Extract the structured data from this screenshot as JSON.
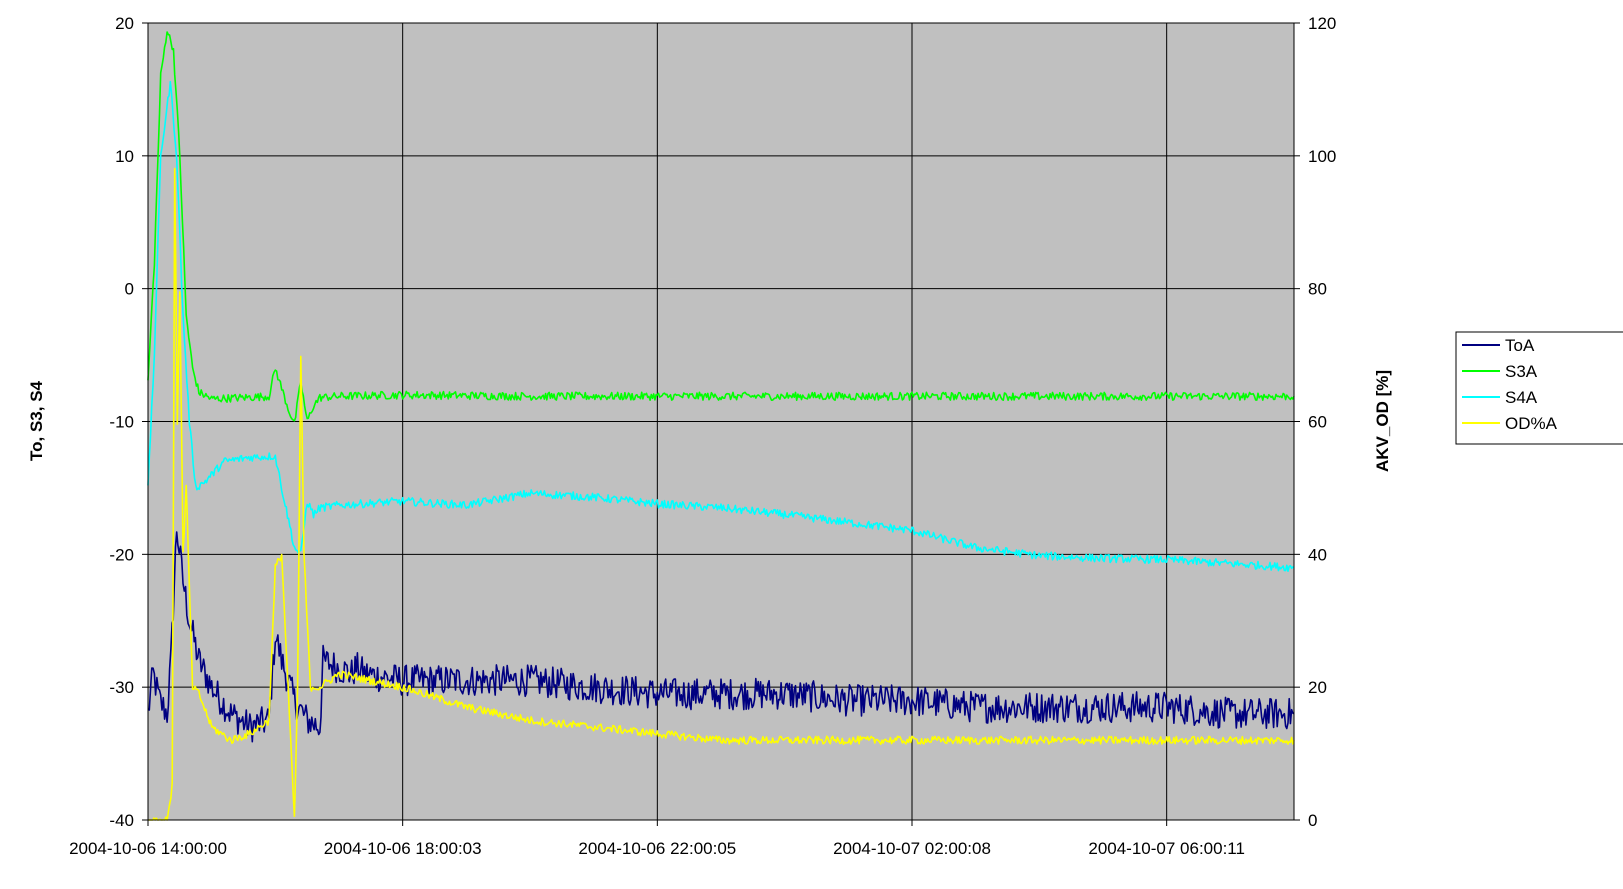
{
  "chart_data": {
    "type": "line",
    "title": "",
    "xlabel": "",
    "ylabel_left": "To, S3, S4",
    "ylabel_right": "AKV_OD [%]",
    "ylim_left": [
      -40,
      20
    ],
    "ylim_right": [
      0,
      120
    ],
    "yticks_left": [
      "20",
      "10",
      "0",
      "-10",
      "-20",
      "-30",
      "-40"
    ],
    "yticks_right": [
      "120",
      "100",
      "80",
      "60",
      "40",
      "20",
      "0"
    ],
    "xticks": [
      "2004-10-06 14:00:00",
      "2004-10-06 18:00:03",
      "2004-10-06 22:00:05",
      "2004-10-07 02:00:08",
      "2004-10-07 06:00:11"
    ],
    "xlim_hours": [
      0,
      18
    ],
    "grid": true,
    "plot_background": "#c0c0c0",
    "legend_position": "right",
    "series": [
      {
        "name": "ToA",
        "color": "#000080",
        "axis": "left",
        "noise": 1.2,
        "x": [
          0,
          0.08,
          0.18,
          0.3,
          0.36,
          0.45,
          0.55,
          0.65,
          0.8,
          1.0,
          1.3,
          1.6,
          1.9,
          2.0,
          2.1,
          2.3,
          2.5,
          2.7,
          2.75,
          3.2,
          3.27,
          3.4,
          4.0,
          5.0,
          6.0,
          7.0,
          8.0,
          9.0,
          10.0,
          11.0,
          12.0,
          13.0,
          14.0,
          15.0,
          16.0,
          17.0,
          18.0
        ],
        "y": [
          -32,
          -29,
          -31,
          -32,
          -28,
          -18,
          -22,
          -25,
          -28,
          -30,
          -32,
          -33,
          -32.5,
          -26,
          -28,
          -31,
          -32.5,
          -33,
          -28,
          -29,
          -28.5,
          -29,
          -29.5,
          -29.5,
          -29.5,
          -30,
          -30.5,
          -30.5,
          -30.5,
          -31,
          -31,
          -31.5,
          -31.5,
          -31.5,
          -31.5,
          -32,
          -32
        ]
      },
      {
        "name": "S3A",
        "color": "#00ff00",
        "axis": "left",
        "noise": 0.3,
        "x": [
          0,
          0.1,
          0.2,
          0.3,
          0.4,
          0.5,
          0.6,
          0.7,
          0.8,
          1.0,
          1.5,
          1.9,
          2.0,
          2.1,
          2.2,
          2.3,
          2.4,
          2.5,
          2.6,
          2.7,
          3.0,
          4.0,
          6.0,
          8.0,
          10.0,
          12.0,
          14.0,
          16.0,
          18.0
        ],
        "y": [
          -7,
          2,
          16,
          19.5,
          18,
          10,
          -2,
          -6,
          -7.8,
          -8.3,
          -8.2,
          -8.1,
          -6,
          -7.5,
          -9,
          -10.2,
          -7,
          -10,
          -8.8,
          -8.2,
          -8.1,
          -8,
          -8.1,
          -8.1,
          -8.1,
          -8.1,
          -8.1,
          -8.1,
          -8.1
        ]
      },
      {
        "name": "S4A",
        "color": "#00ffff",
        "axis": "left",
        "noise": 0.3,
        "x": [
          0,
          0.1,
          0.2,
          0.35,
          0.45,
          0.55,
          0.65,
          0.75,
          0.9,
          1.2,
          1.6,
          2.0,
          2.1,
          2.3,
          2.4,
          2.5,
          2.6,
          2.7,
          3.0,
          4.0,
          5.0,
          6.0,
          7.0,
          8.0,
          9.0,
          10.0,
          11.0,
          12.0,
          13.0,
          14.0,
          15.0,
          16.0,
          17.0,
          18.0
        ],
        "y": [
          -15,
          -5,
          10,
          15.5,
          10,
          -2,
          -10,
          -15,
          -14.5,
          -13,
          -12.7,
          -12.6,
          -15,
          -19.5,
          -20,
          -16,
          -17,
          -16.5,
          -16.3,
          -16,
          -16.3,
          -15.4,
          -15.7,
          -16.2,
          -16.5,
          -17,
          -17.6,
          -18.2,
          -19.5,
          -20.1,
          -20.3,
          -20.4,
          -20.7,
          -21
        ]
      },
      {
        "name": "OD%A",
        "color": "#ffff00",
        "axis": "right",
        "noise": 0.6,
        "x": [
          0,
          0.15,
          0.3,
          0.38,
          0.42,
          0.46,
          0.5,
          0.55,
          0.6,
          0.65,
          0.7,
          0.8,
          1.0,
          1.3,
          1.6,
          1.9,
          2.0,
          2.1,
          2.2,
          2.3,
          2.35,
          2.4,
          2.45,
          2.55,
          2.7,
          3.0,
          4.0,
          5.0,
          6.0,
          7.0,
          8.0,
          9.0,
          10.0,
          12.0,
          14.0,
          16.0,
          17.0,
          18.0
        ],
        "y": [
          0,
          0,
          0,
          5,
          98,
          60,
          80,
          40,
          50,
          35,
          20,
          19,
          14,
          12,
          13,
          15,
          38,
          40,
          20,
          0,
          20,
          70,
          40,
          20,
          20,
          22,
          20,
          17,
          15,
          14,
          13,
          12,
          12,
          12,
          12,
          12,
          12,
          12
        ]
      }
    ]
  }
}
